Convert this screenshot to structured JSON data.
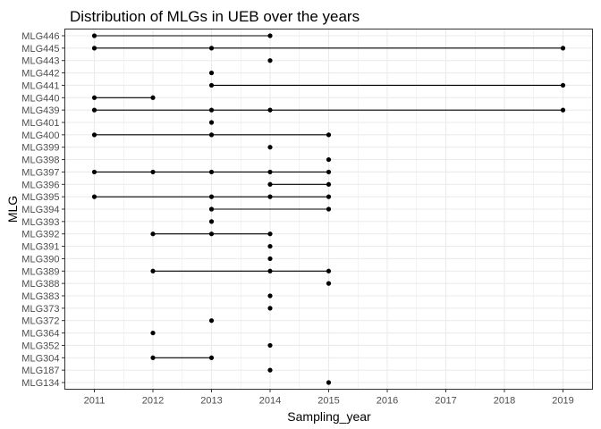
{
  "chart_data": {
    "type": "scatter",
    "title": "Distribution of MLGs in UEB over the years",
    "xlabel": "Sampling_year",
    "ylabel": "MLG",
    "xlim": [
      2011,
      2019
    ],
    "x_ticks": [
      2011,
      2012,
      2013,
      2014,
      2015,
      2016,
      2017,
      2018,
      2019
    ],
    "categories": [
      "MLG446",
      "MLG445",
      "MLG443",
      "MLG442",
      "MLG441",
      "MLG440",
      "MLG439",
      "MLG401",
      "MLG400",
      "MLG399",
      "MLG398",
      "MLG397",
      "MLG396",
      "MLG395",
      "MLG394",
      "MLG393",
      "MLG392",
      "MLG391",
      "MLG390",
      "MLG389",
      "MLG388",
      "MLG383",
      "MLG373",
      "MLG372",
      "MLG364",
      "MLG352",
      "MLG304",
      "MLG187",
      "MLG134"
    ],
    "series": [
      {
        "category": "MLG446",
        "years": [
          2011,
          2014
        ]
      },
      {
        "category": "MLG445",
        "years": [
          2011,
          2013,
          2019
        ]
      },
      {
        "category": "MLG443",
        "years": [
          2014
        ]
      },
      {
        "category": "MLG442",
        "years": [
          2013
        ]
      },
      {
        "category": "MLG441",
        "years": [
          2013,
          2019
        ]
      },
      {
        "category": "MLG440",
        "years": [
          2011,
          2012
        ]
      },
      {
        "category": "MLG439",
        "years": [
          2011,
          2013,
          2014,
          2019
        ]
      },
      {
        "category": "MLG401",
        "years": [
          2013
        ]
      },
      {
        "category": "MLG400",
        "years": [
          2011,
          2013,
          2015
        ]
      },
      {
        "category": "MLG399",
        "years": [
          2014
        ]
      },
      {
        "category": "MLG398",
        "years": [
          2015
        ]
      },
      {
        "category": "MLG397",
        "years": [
          2011,
          2012,
          2013,
          2014,
          2015
        ]
      },
      {
        "category": "MLG396",
        "years": [
          2014,
          2015
        ]
      },
      {
        "category": "MLG395",
        "years": [
          2011,
          2013,
          2014,
          2015
        ]
      },
      {
        "category": "MLG394",
        "years": [
          2013,
          2015
        ]
      },
      {
        "category": "MLG393",
        "years": [
          2013
        ]
      },
      {
        "category": "MLG392",
        "years": [
          2012,
          2013,
          2014
        ]
      },
      {
        "category": "MLG391",
        "years": [
          2014
        ]
      },
      {
        "category": "MLG390",
        "years": [
          2014
        ]
      },
      {
        "category": "MLG389",
        "years": [
          2012,
          2014,
          2015
        ]
      },
      {
        "category": "MLG388",
        "years": [
          2015
        ]
      },
      {
        "category": "MLG383",
        "years": [
          2014
        ]
      },
      {
        "category": "MLG373",
        "years": [
          2014
        ]
      },
      {
        "category": "MLG372",
        "years": [
          2013
        ]
      },
      {
        "category": "MLG364",
        "years": [
          2012
        ]
      },
      {
        "category": "MLG352",
        "years": [
          2014
        ]
      },
      {
        "category": "MLG304",
        "years": [
          2012,
          2013
        ]
      },
      {
        "category": "MLG187",
        "years": [
          2014
        ]
      },
      {
        "category": "MLG134",
        "years": [
          2015
        ]
      }
    ],
    "grid": true,
    "legend": "none",
    "colors": {
      "point": "#000000",
      "line": "#000000",
      "grid": "#ebebeb",
      "border": "#333333",
      "background": "#ffffff"
    }
  }
}
